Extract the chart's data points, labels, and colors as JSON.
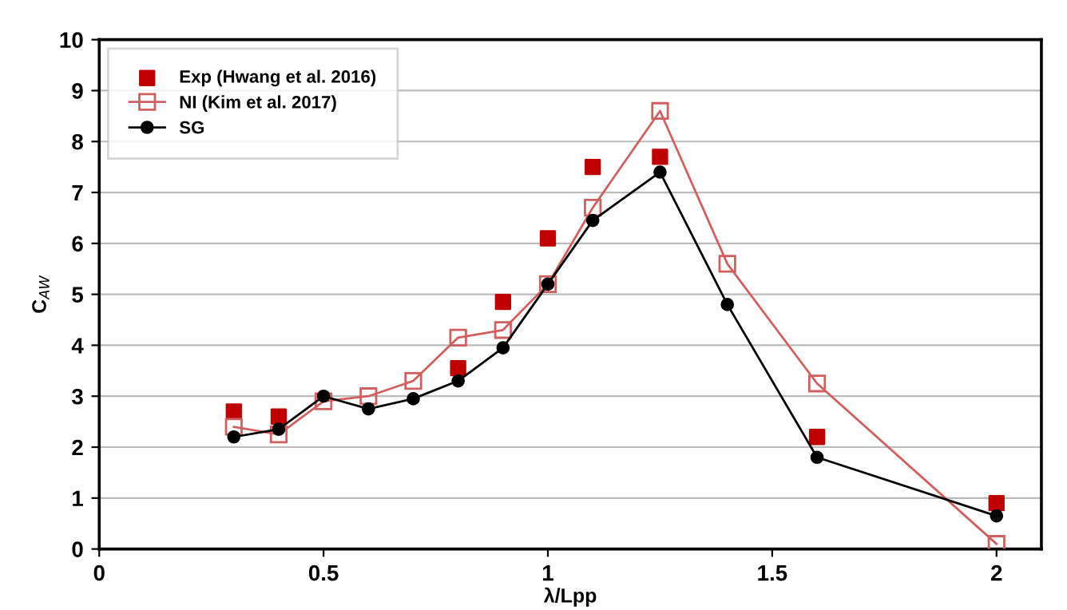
{
  "chart_data": {
    "type": "line",
    "xlabel": "λ/Lpp",
    "ylabel": "C$_{AW}$",
    "xlim": [
      0,
      2.1
    ],
    "xticks": [
      0,
      {
        "value": 0.5,
        "label": "0.5"
      },
      1,
      {
        "value": 1.5,
        "label": "1.5"
      },
      2
    ],
    "ylim": [
      0,
      10
    ],
    "yticks": [
      0,
      1,
      2,
      3,
      4,
      5,
      6,
      7,
      8,
      9,
      10
    ],
    "grid": "y",
    "legend": "top left",
    "series": [
      {
        "name": "Exp (Hwang et al. 2016)",
        "type": "scatter",
        "marker": "square",
        "color": "#c00000",
        "x": [
          0.3,
          0.4,
          0.5,
          0.7,
          0.8,
          0.9,
          1.0,
          1.1,
          1.25,
          1.4,
          1.6,
          2.0
        ],
        "values": [
          2.7,
          2.6,
          null,
          null,
          3.55,
          4.85,
          6.1,
          7.5,
          7.7,
          null,
          2.2,
          0.9
        ]
      },
      {
        "name": "NI (Kim et al. 2017)",
        "marker": "square",
        "color": "#d06060",
        "x": [
          0.3,
          0.4,
          0.5,
          0.6,
          0.7,
          0.8,
          0.9,
          1.0,
          1.1,
          1.25,
          1.4,
          1.6,
          2.0
        ],
        "values": [
          2.4,
          2.25,
          2.9,
          3.0,
          3.3,
          4.15,
          4.3,
          5.2,
          6.7,
          8.6,
          5.6,
          3.25,
          0.1
        ]
      },
      {
        "name": "SG",
        "marker": "circle",
        "color": "#000000",
        "x": [
          0.3,
          0.4,
          0.5,
          0.6,
          0.7,
          0.8,
          0.9,
          1.0,
          1.1,
          1.25,
          1.4,
          1.6,
          2.0
        ],
        "values": [
          2.2,
          2.35,
          3.0,
          2.75,
          2.95,
          3.3,
          3.95,
          5.2,
          6.45,
          7.4,
          4.8,
          1.8,
          0.65
        ]
      }
    ]
  }
}
